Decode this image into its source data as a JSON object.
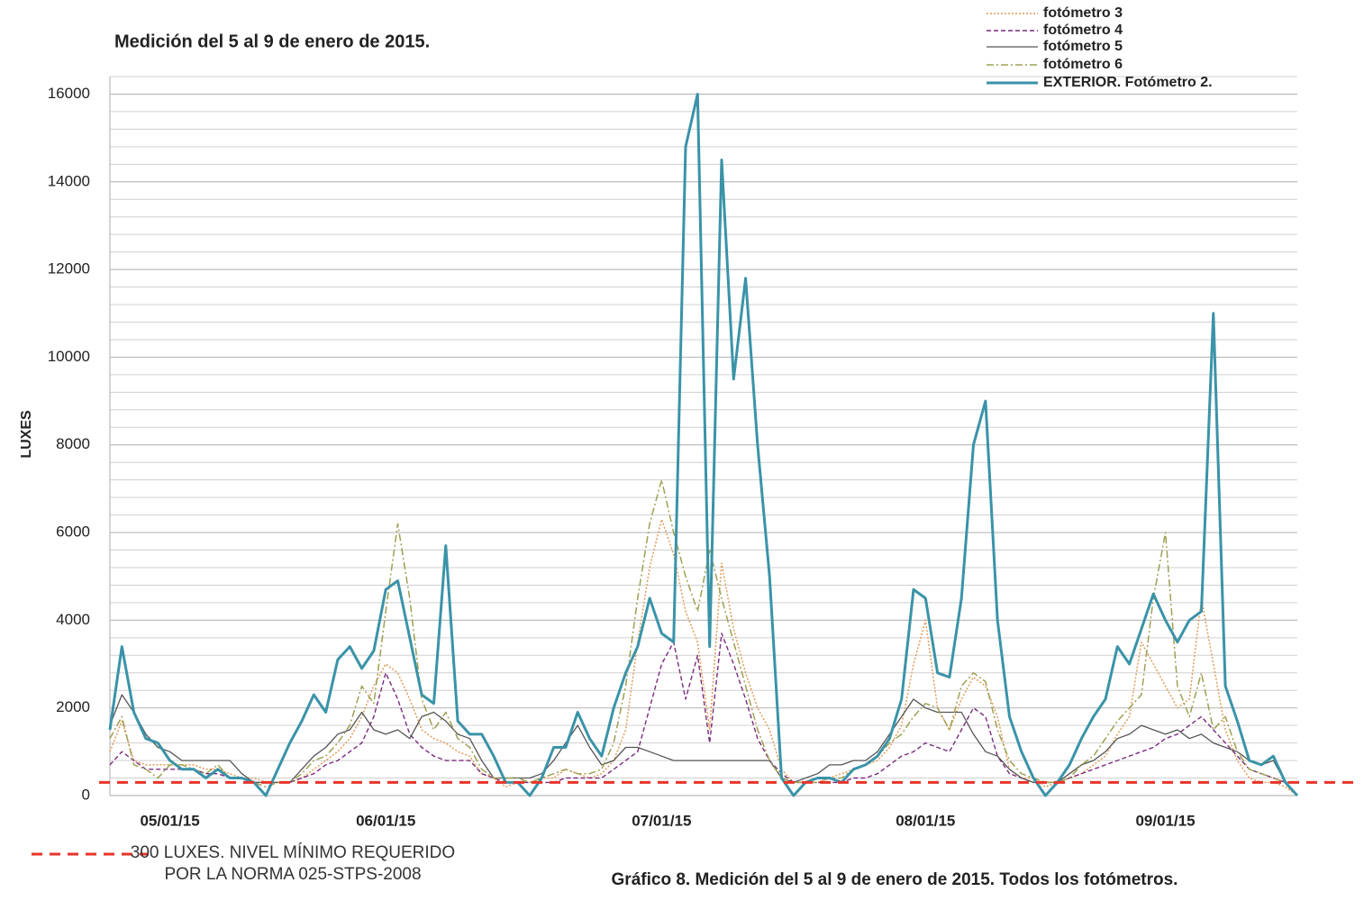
{
  "chart_data": {
    "type": "line",
    "title": "Medición del 5 al 9 de enero de 2015.",
    "caption": "Gráfico 8. Medición del 5 al 9 de enero de 2015. Todos los fotómetros.",
    "y_label": "LUXES",
    "ylim": [
      0,
      16400
    ],
    "yticks": [
      0,
      2000,
      4000,
      6000,
      8000,
      10000,
      12000,
      14000,
      16000
    ],
    "minor_yticks": [
      400,
      800,
      1200,
      1600,
      2400,
      2800,
      3200,
      3600,
      4400,
      4800,
      5200,
      5600,
      6400,
      6800,
      7200,
      7600,
      8400,
      8800,
      9200,
      9600,
      10400,
      10800,
      11200,
      11600,
      12400,
      12800,
      13200,
      13600,
      14400,
      14800,
      15200,
      15600,
      16400
    ],
    "grid": true,
    "threshold": {
      "value": 300,
      "label": "300 LUXES. NIVEL MÍNIMO REQUERIDO POR LA NORMA 025-STPS-2008",
      "color": "#e8332a"
    },
    "categories": [
      null,
      null,
      null,
      null,
      null,
      "05/01/15",
      null,
      null,
      null,
      null,
      null,
      null,
      null,
      null,
      null,
      null,
      null,
      null,
      null,
      null,
      null,
      null,
      null,
      "06/01/15",
      null,
      null,
      null,
      null,
      null,
      null,
      null,
      null,
      null,
      null,
      null,
      null,
      null,
      null,
      null,
      null,
      null,
      null,
      null,
      null,
      null,
      null,
      "07/01/15",
      null,
      null,
      null,
      null,
      null,
      null,
      null,
      null,
      null,
      null,
      null,
      null,
      null,
      null,
      null,
      null,
      null,
      null,
      null,
      null,
      null,
      "08/01/15",
      null,
      null,
      null,
      null,
      null,
      null,
      null,
      null,
      null,
      null,
      null,
      null,
      null,
      null,
      null,
      null,
      null,
      null,
      null,
      "09/01/15",
      null,
      null,
      null,
      null,
      null,
      null,
      null,
      null,
      null,
      null,
      null
    ],
    "series": [
      {
        "name": "fotómetro 3",
        "color": "#e39a55",
        "dash": "2,2",
        "width": 1.5,
        "values": [
          1000,
          1700,
          800,
          700,
          700,
          700,
          700,
          700,
          600,
          600,
          500,
          400,
          400,
          300,
          300,
          300,
          400,
          600,
          800,
          1000,
          1300,
          1800,
          2500,
          3000,
          2800,
          2200,
          1500,
          1300,
          1200,
          1000,
          900,
          500,
          400,
          200,
          300,
          300,
          400,
          400,
          600,
          500,
          400,
          500,
          800,
          1500,
          3500,
          5200,
          6300,
          5500,
          4200,
          3500,
          1500,
          5300,
          3800,
          2800,
          2000,
          1500,
          600,
          300,
          300,
          300,
          400,
          500,
          600,
          700,
          800,
          1100,
          1600,
          3000,
          4000,
          2000,
          1500,
          2200,
          2700,
          2500,
          1800,
          600,
          400,
          400,
          200,
          300,
          400,
          500,
          700,
          900,
          1400,
          1800,
          3500,
          3000,
          2500,
          2000,
          2200,
          4500,
          3000,
          1500,
          800,
          400,
          300,
          300,
          200,
          0
        ]
      },
      {
        "name": "fotómetro 4",
        "color": "#7a2a7e",
        "dash": "5,3",
        "width": 1.4,
        "values": [
          700,
          1000,
          800,
          600,
          600,
          600,
          600,
          600,
          500,
          500,
          400,
          400,
          300,
          300,
          300,
          300,
          400,
          500,
          700,
          800,
          1000,
          1200,
          1800,
          2800,
          2200,
          1400,
          1100,
          900,
          800,
          800,
          800,
          500,
          400,
          300,
          300,
          300,
          300,
          300,
          400,
          400,
          400,
          400,
          600,
          800,
          1000,
          2000,
          3000,
          3500,
          2200,
          3200,
          1200,
          3700,
          3000,
          2200,
          1300,
          800,
          500,
          300,
          300,
          300,
          300,
          300,
          400,
          400,
          500,
          700,
          900,
          1000,
          1200,
          1100,
          1000,
          1500,
          2000,
          1800,
          900,
          500,
          400,
          300,
          300,
          300,
          400,
          500,
          600,
          700,
          800,
          900,
          1000,
          1100,
          1300,
          1400,
          1600,
          1800,
          1500,
          1200,
          900,
          600,
          500,
          400,
          300,
          300
        ]
      },
      {
        "name": "fotómetro 5",
        "color": "#555555",
        "dash": "",
        "width": 1.3,
        "values": [
          1600,
          2300,
          1900,
          1400,
          1100,
          1000,
          800,
          800,
          800,
          800,
          800,
          500,
          300,
          300,
          300,
          300,
          600,
          900,
          1100,
          1400,
          1500,
          1900,
          1500,
          1400,
          1500,
          1300,
          1800,
          1900,
          1700,
          1400,
          1300,
          800,
          400,
          400,
          400,
          400,
          500,
          800,
          1200,
          1600,
          1100,
          700,
          800,
          1100,
          1100,
          1000,
          900,
          800,
          800,
          800,
          800,
          800,
          800,
          800,
          800,
          800,
          400,
          300,
          400,
          500,
          700,
          700,
          800,
          800,
          1000,
          1400,
          1800,
          2200,
          2000,
          1900,
          1900,
          1900,
          1400,
          1000,
          900,
          600,
          400,
          300,
          300,
          300,
          500,
          700,
          800,
          1000,
          1300,
          1400,
          1600,
          1500,
          1400,
          1500,
          1300,
          1400,
          1200,
          1100,
          1000,
          800,
          700,
          800,
          300,
          300
        ]
      },
      {
        "name": "fotómetro 6",
        "color": "#9ea052",
        "dash": "8,3,2,3",
        "width": 1.5,
        "values": [
          1300,
          1800,
          700,
          600,
          400,
          700,
          700,
          600,
          500,
          700,
          400,
          400,
          300,
          200,
          300,
          300,
          500,
          800,
          900,
          1200,
          1600,
          2500,
          2100,
          4200,
          6200,
          4500,
          2200,
          1500,
          1900,
          1300,
          1100,
          600,
          400,
          400,
          400,
          300,
          400,
          500,
          600,
          500,
          500,
          600,
          1200,
          2500,
          4500,
          6200,
          7200,
          6000,
          5000,
          4200,
          5600,
          4500,
          3500,
          2500,
          1500,
          800,
          400,
          300,
          300,
          300,
          400,
          400,
          600,
          700,
          900,
          1200,
          1400,
          1800,
          2100,
          2000,
          1500,
          2500,
          2800,
          2600,
          1500,
          800,
          500,
          400,
          300,
          300,
          400,
          700,
          900,
          1300,
          1700,
          2000,
          2300,
          4500,
          6000,
          2500,
          1800,
          2800,
          1500,
          1800,
          1000,
          600,
          500,
          400,
          300,
          300
        ]
      },
      {
        "name": "EXTERIOR. Fotómetro 2.",
        "color": "#3a93a8",
        "dash": "",
        "width": 3,
        "values": [
          1500,
          3400,
          1900,
          1300,
          1200,
          800,
          600,
          600,
          400,
          600,
          400,
          400,
          300,
          0,
          600,
          1200,
          1700,
          2300,
          1900,
          3100,
          3400,
          2900,
          3300,
          4700,
          4900,
          3600,
          2300,
          2100,
          5700,
          1700,
          1400,
          1400,
          900,
          300,
          300,
          0,
          400,
          1100,
          1100,
          1900,
          1300,
          900,
          2000,
          2800,
          3400,
          4500,
          3700,
          3500,
          14800,
          16000,
          3400,
          14500,
          9500,
          11800,
          8000,
          5000,
          400,
          0,
          300,
          400,
          400,
          300,
          600,
          700,
          900,
          1300,
          2200,
          4700,
          4500,
          2800,
          2700,
          4500,
          8000,
          9000,
          4000,
          1800,
          1000,
          400,
          0,
          300,
          700,
          1300,
          1800,
          2200,
          3400,
          3000,
          3800,
          4600,
          4000,
          3500,
          4000,
          4200,
          11000,
          2500,
          1700,
          800,
          700,
          900,
          300,
          0
        ]
      }
    ]
  }
}
